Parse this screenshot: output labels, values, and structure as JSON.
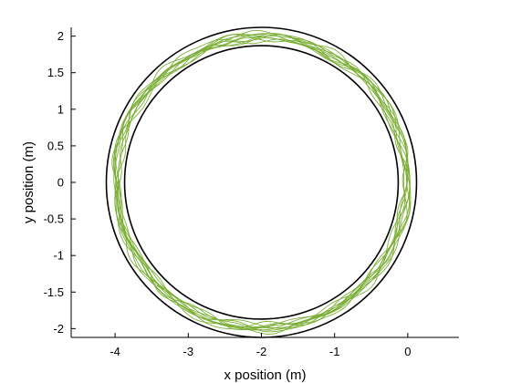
{
  "chart_data": {
    "type": "line",
    "title": "",
    "xlabel": "x position (m)",
    "ylabel": "y position (m)",
    "xlim": [
      -4.6,
      0.7
    ],
    "ylim": [
      -2.12,
      2.12
    ],
    "xticks": [
      -4,
      -3,
      -2,
      -1,
      0
    ],
    "yticks": [
      -2,
      -1.5,
      -1,
      -0.5,
      0,
      0.5,
      1,
      1.5,
      2
    ],
    "xtick_labels": [
      "-4",
      "-3",
      "-2",
      "-1",
      "0"
    ],
    "ytick_labels": [
      "-2",
      "-1.5",
      "-1",
      "-0.5",
      "0",
      "0.5",
      "1",
      "1.5",
      "2"
    ],
    "grid": false,
    "boundaries": [
      {
        "shape": "circle",
        "center": [
          -2,
          0
        ],
        "radius": 2.12,
        "color": "#000000"
      },
      {
        "shape": "circle",
        "center": [
          -2,
          0
        ],
        "radius": 1.87,
        "color": "#000000"
      }
    ],
    "trajectory": {
      "center": [
        -2,
        0
      ],
      "radius_min": 1.9,
      "radius_max": 2.08,
      "loops": 10,
      "color": "#77ac30"
    }
  }
}
